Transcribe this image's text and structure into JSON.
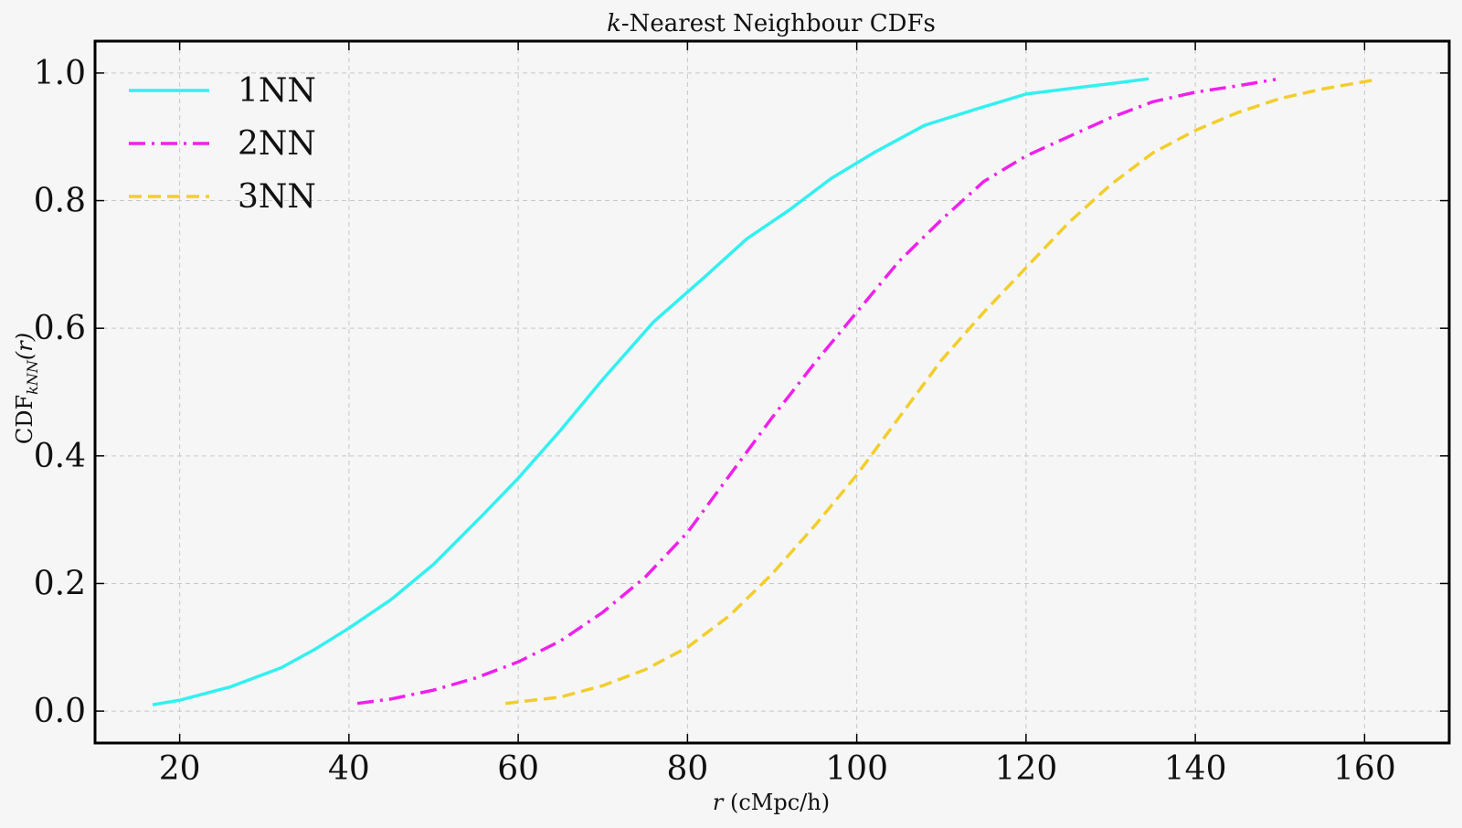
{
  "chart_data": {
    "type": "line",
    "title_italic_prefix": "k",
    "title_rest": "-Nearest Neighbour CDFs",
    "xlabel_italic": "r",
    "xlabel_units": "cMpc/h",
    "ylabel_base": "CDF",
    "ylabel_sub": "kNN",
    "ylabel_arg": "(r)",
    "xlim": [
      10,
      170
    ],
    "ylim": [
      -0.05,
      1.05
    ],
    "xticks": [
      "20",
      "40",
      "60",
      "80",
      "100",
      "120",
      "140",
      "160"
    ],
    "yticks": [
      "0.0",
      "0.2",
      "0.4",
      "0.6",
      "0.8",
      "1.0"
    ],
    "grid": true,
    "legend_position": "top-left",
    "series": [
      {
        "name": "1NN",
        "color": "#33f0f0",
        "style": "solid",
        "x": [
          16.8,
          20,
          26,
          32,
          36,
          40,
          45,
          50,
          56,
          60,
          65,
          70,
          76,
          82,
          87,
          92,
          97,
          102,
          108,
          114,
          120,
          126,
          131,
          134.5
        ],
        "y": [
          0.01,
          0.017,
          0.038,
          0.068,
          0.097,
          0.13,
          0.175,
          0.23,
          0.31,
          0.365,
          0.44,
          0.52,
          0.61,
          0.68,
          0.74,
          0.785,
          0.835,
          0.875,
          0.918,
          0.943,
          0.967,
          0.977,
          0.985,
          0.991
        ]
      },
      {
        "name": "2NN",
        "color": "#f020ec",
        "style": "dashdot",
        "x": [
          41,
          45,
          50,
          55,
          60,
          65,
          70,
          75,
          80,
          85,
          90,
          95,
          100,
          105,
          110,
          115,
          120,
          125,
          130,
          135,
          140,
          145,
          149.5
        ],
        "y": [
          0.012,
          0.019,
          0.033,
          0.052,
          0.077,
          0.11,
          0.155,
          0.21,
          0.28,
          0.37,
          0.46,
          0.545,
          0.625,
          0.705,
          0.77,
          0.83,
          0.87,
          0.9,
          0.93,
          0.955,
          0.97,
          0.98,
          0.99
        ]
      },
      {
        "name": "3NN",
        "color": "#f2ce2c",
        "style": "dashed",
        "x": [
          58.5,
          65,
          70,
          75,
          80,
          85,
          90,
          95,
          100,
          105,
          110,
          115,
          120,
          125,
          130,
          135,
          140,
          145,
          150,
          155,
          161.5
        ],
        "y": [
          0.012,
          0.022,
          0.04,
          0.065,
          0.1,
          0.15,
          0.215,
          0.29,
          0.37,
          0.46,
          0.55,
          0.625,
          0.695,
          0.765,
          0.825,
          0.875,
          0.91,
          0.938,
          0.96,
          0.975,
          0.99
        ]
      }
    ]
  }
}
